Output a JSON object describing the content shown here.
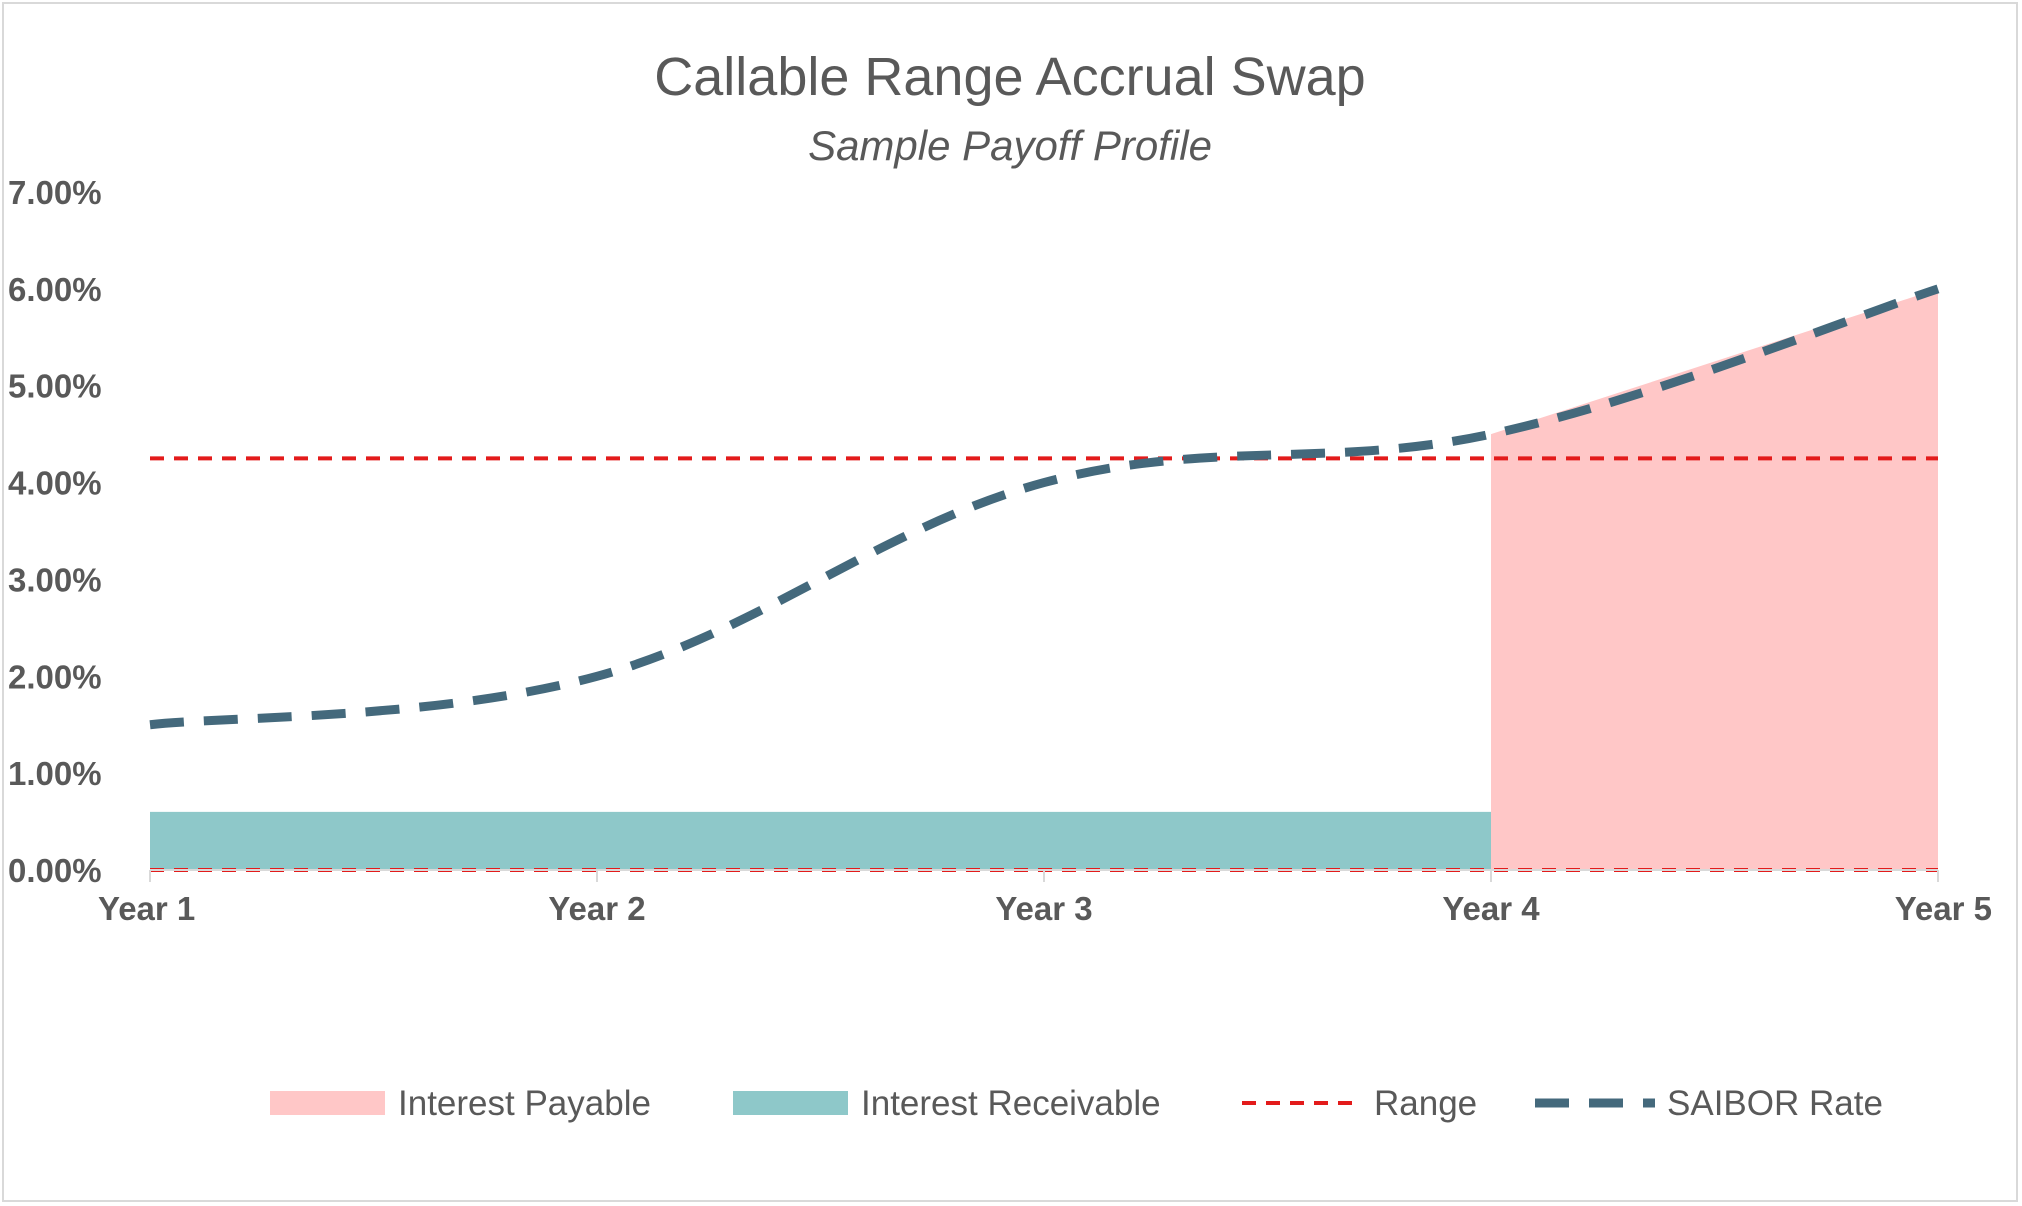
{
  "chart_data": {
    "type": "area",
    "title": "Callable Range Accrual Swap",
    "subtitle": "Sample Payoff Profile",
    "categories": [
      "Year 1",
      "Year 2",
      "Year 3",
      "Year 4",
      "Year 5"
    ],
    "ylim": [
      0,
      0.07
    ],
    "yticks": [
      "0.00%",
      "1.00%",
      "2.00%",
      "3.00%",
      "4.00%",
      "5.00%",
      "6.00%",
      "7.00%"
    ],
    "grid": false,
    "legend_position": "bottom",
    "series": [
      {
        "name": "Interest Payable",
        "kind": "area",
        "color": "#ffc7c7",
        "points": [
          {
            "x": "Year 4",
            "y": 0.045
          },
          {
            "x": "Year 5",
            "y": 0.06
          }
        ]
      },
      {
        "name": "Interest Receivable",
        "kind": "area",
        "color": "#8ec8c9",
        "points": [
          {
            "x": "Year 1",
            "y": 0.006
          },
          {
            "x": "Year 4",
            "y": 0.006
          }
        ]
      },
      {
        "name": "Range",
        "kind": "dashed-line",
        "color": "#e31b1b",
        "lower": 0.0,
        "upper": 0.0425
      },
      {
        "name": "SAIBOR Rate",
        "kind": "dashed-line",
        "color": "#44697c",
        "values": [
          0.015,
          0.02,
          0.04,
          0.045,
          0.06
        ]
      }
    ]
  }
}
